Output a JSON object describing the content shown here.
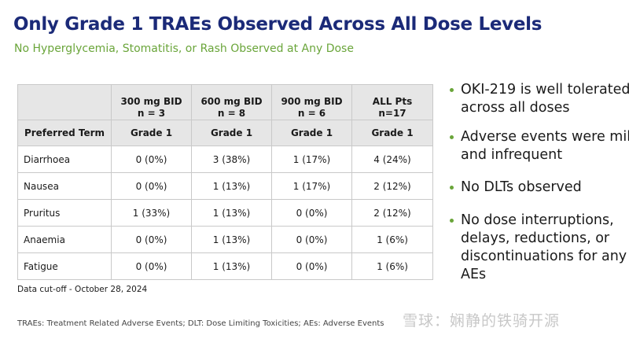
{
  "slide": {
    "title": "Only Grade 1 TRAEs Observed Across All Dose Levels",
    "subtitle": "No Hyperglycemia, Stomatitis, or Rash Observed at Any Dose",
    "colors": {
      "title": "#1b2a78",
      "accent_green": "#6aa53a",
      "header_bg": "#e6e6e6"
    }
  },
  "table": {
    "group_headers": [
      {
        "line1": "300 mg BID",
        "line2": "n = 3"
      },
      {
        "line1": "600 mg BID",
        "line2": "n = 8"
      },
      {
        "line1": "900 mg BID",
        "line2": "n = 6"
      },
      {
        "line1": "ALL Pts",
        "line2": "n=17"
      }
    ],
    "sub_headers": [
      "Preferred Term",
      "Grade 1",
      "Grade 1",
      "Grade 1",
      "Grade 1"
    ],
    "rows": [
      [
        "Diarrhoea",
        "0 (0%)",
        "3 (38%)",
        "1 (17%)",
        "4 (24%)"
      ],
      [
        "Nausea",
        "0 (0%)",
        "1 (13%)",
        "1 (17%)",
        "2 (12%)"
      ],
      [
        "Pruritus",
        "1 (33%)",
        "1 (13%)",
        "0 (0%)",
        "2 (12%)"
      ],
      [
        "Anaemia",
        "0 (0%)",
        "1 (13%)",
        "0 (0%)",
        "1 (6%)"
      ],
      [
        "Fatigue",
        "0 (0%)",
        "1 (13%)",
        "0 (0%)",
        "1 (6%)"
      ]
    ]
  },
  "cutoff": "Data cut-off - October 28, 2024",
  "footnote": "TRAEs: Treatment Related Adverse Events; DLT: Dose Limiting Toxicities; AEs: Adverse Events",
  "bullets": [
    "OKI-219 is well tolerated across all doses",
    "Adverse events were mild and infrequent",
    "No DLTs observed",
    "No dose interruptions, delays, reductions, or discontinuations for any AEs"
  ],
  "watermark": "雪球：娴静的铁骑开源"
}
